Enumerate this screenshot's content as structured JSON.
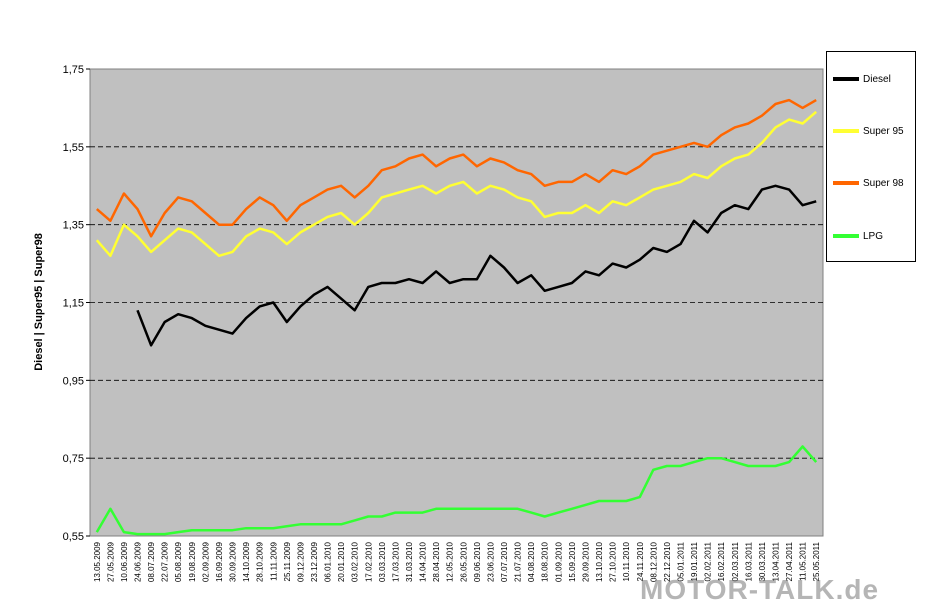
{
  "chart_data": {
    "type": "line",
    "ylabel": "Diesel | Super95 | Super98",
    "ylim": [
      0.55,
      1.75
    ],
    "ytick_labels": [
      "1,75",
      "1,55",
      "1,35",
      "1,15",
      "0,95",
      "0,75",
      "0,55"
    ],
    "ytick_values": [
      1.75,
      1.55,
      1.35,
      1.15,
      0.95,
      0.75,
      0.55
    ],
    "grid": "horizontal dashed",
    "plot_background": "#c0c0c0",
    "legend_placement": "right",
    "x_tick_labels": [
      "13.05.2009",
      "27.05.2009",
      "10.06.2009",
      "24.06.2009",
      "08.07.2009",
      "22.07.2009",
      "05.08.2009",
      "19.08.2009",
      "02.09.2009",
      "16.09.2009",
      "30.09.2009",
      "14.10.2009",
      "28.10.2009",
      "11.11.2009",
      "25.11.2009",
      "09.12.2009",
      "23.12.2009",
      "06.01.2010",
      "20.01.2010",
      "03.02.2010",
      "17.02.2010",
      "03.03.2010",
      "17.03.2010",
      "31.03.2010",
      "14.04.2010",
      "28.04.2010",
      "12.05.2010",
      "26.05.2010",
      "09.06.2010",
      "23.06.2010",
      "07.07.2010",
      "21.07.2010",
      "04.08.2010",
      "18.08.2010",
      "01.09.2010",
      "15.09.2010",
      "29.09.2010",
      "13.10.2010",
      "27.10.2010",
      "10.11.2010",
      "24.11.2010",
      "08.12.2010",
      "22.12.2010",
      "05.01.2011",
      "19.01.2011",
      "02.02.2011",
      "16.02.2011",
      "02.03.2011",
      "16.03.2011",
      "30.03.2011",
      "13.04.2011",
      "27.04.2011",
      "11.05.2011",
      "25.05.2011"
    ],
    "series": [
      {
        "name": "Diesel",
        "color": "#000000",
        "width": 2.5,
        "values": [
          null,
          null,
          null,
          1.13,
          1.04,
          1.1,
          1.12,
          1.11,
          1.09,
          1.08,
          1.07,
          1.11,
          1.14,
          1.15,
          1.1,
          1.14,
          1.17,
          1.19,
          1.16,
          1.13,
          1.19,
          1.2,
          1.2,
          1.21,
          1.2,
          1.23,
          1.2,
          1.21,
          1.21,
          1.27,
          1.24,
          1.2,
          1.22,
          1.18,
          1.19,
          1.2,
          1.23,
          1.22,
          1.25,
          1.24,
          1.26,
          1.29,
          1.28,
          1.3,
          1.36,
          1.33,
          1.38,
          1.4,
          1.39,
          1.44,
          1.45,
          1.44,
          1.4,
          1.41
        ]
      },
      {
        "name": "Super 95",
        "color": "#ffff33",
        "width": 2.5,
        "values": [
          1.31,
          1.27,
          1.35,
          1.32,
          1.28,
          1.31,
          1.34,
          1.33,
          1.3,
          1.27,
          1.28,
          1.32,
          1.34,
          1.33,
          1.3,
          1.33,
          1.35,
          1.37,
          1.38,
          1.35,
          1.38,
          1.42,
          1.43,
          1.44,
          1.45,
          1.43,
          1.45,
          1.46,
          1.43,
          1.45,
          1.44,
          1.42,
          1.41,
          1.37,
          1.38,
          1.38,
          1.4,
          1.38,
          1.41,
          1.4,
          1.42,
          1.44,
          1.45,
          1.46,
          1.48,
          1.47,
          1.5,
          1.52,
          1.53,
          1.56,
          1.6,
          1.62,
          1.61,
          1.64
        ]
      },
      {
        "name": "Super 98",
        "color": "#ff6600",
        "width": 2.5,
        "values": [
          1.39,
          1.36,
          1.43,
          1.39,
          1.32,
          1.38,
          1.42,
          1.41,
          1.38,
          1.35,
          1.35,
          1.39,
          1.42,
          1.4,
          1.36,
          1.4,
          1.42,
          1.44,
          1.45,
          1.42,
          1.45,
          1.49,
          1.5,
          1.52,
          1.53,
          1.5,
          1.52,
          1.53,
          1.5,
          1.52,
          1.51,
          1.49,
          1.48,
          1.45,
          1.46,
          1.46,
          1.48,
          1.46,
          1.49,
          1.48,
          1.5,
          1.53,
          1.54,
          1.55,
          1.56,
          1.55,
          1.58,
          1.6,
          1.61,
          1.63,
          1.66,
          1.67,
          1.65,
          1.67
        ]
      },
      {
        "name": "LPG",
        "color": "#33ff33",
        "width": 2.5,
        "values": [
          0.56,
          0.62,
          0.56,
          0.555,
          0.555,
          0.555,
          0.56,
          0.565,
          0.565,
          0.565,
          0.565,
          0.57,
          0.57,
          0.57,
          0.575,
          0.58,
          0.58,
          0.58,
          0.58,
          0.59,
          0.6,
          0.6,
          0.61,
          0.61,
          0.61,
          0.62,
          0.62,
          0.62,
          0.62,
          0.62,
          0.62,
          0.62,
          0.61,
          0.6,
          0.61,
          0.62,
          0.63,
          0.64,
          0.64,
          0.64,
          0.65,
          0.72,
          0.73,
          0.73,
          0.74,
          0.75,
          0.75,
          0.74,
          0.73,
          0.73,
          0.73,
          0.74,
          0.78,
          0.74
        ]
      }
    ]
  },
  "legend": {
    "items": [
      {
        "label": "Diesel",
        "color": "#000000"
      },
      {
        "label": "Super 95",
        "color": "#ffff33"
      },
      {
        "label": "Super 98",
        "color": "#ff6600"
      },
      {
        "label": "LPG",
        "color": "#33ff33"
      }
    ]
  },
  "watermark": "MOTOR-TALK.de"
}
